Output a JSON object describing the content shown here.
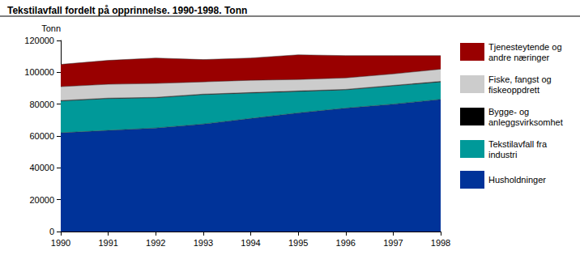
{
  "chart_data": {
    "type": "area",
    "title": "Tekstilavfall fordelt på opprinnelse. 1990-1998. Tonn",
    "y_label": "Tonn",
    "categories": [
      "1990",
      "1991",
      "1992",
      "1993",
      "1994",
      "1995",
      "1996",
      "1997",
      "1998"
    ],
    "stacked": true,
    "grid": false,
    "legend": "right",
    "ylim": [
      0,
      120000
    ],
    "yticks": [
      0,
      20000,
      40000,
      60000,
      80000,
      100000,
      120000
    ],
    "series": [
      {
        "name": "Husholdninger",
        "color": "#003399",
        "values": [
          62000,
          63500,
          65000,
          67500,
          71000,
          74500,
          77500,
          80000,
          83000
        ]
      },
      {
        "name": "Tekstilavfall fra industri",
        "color": "#009999",
        "values": [
          20000,
          20000,
          19000,
          18500,
          16000,
          13500,
          11500,
          11500,
          11000
        ]
      },
      {
        "name": "Bygge- og anleggsvirksomhet",
        "color": "#000000",
        "values": [
          300,
          300,
          300,
          300,
          300,
          300,
          300,
          300,
          300
        ]
      },
      {
        "name": "Fiske, fangst og fiskeoppdrett",
        "color": "#cccccc",
        "values": [
          8700,
          8700,
          8700,
          7700,
          7700,
          7200,
          7200,
          7200,
          7700
        ]
      },
      {
        "name": "Tjenesteytende og andre næringer",
        "color": "#990000",
        "values": [
          14000,
          15000,
          16000,
          14000,
          14000,
          15500,
          14000,
          11500,
          8500
        ]
      }
    ]
  }
}
